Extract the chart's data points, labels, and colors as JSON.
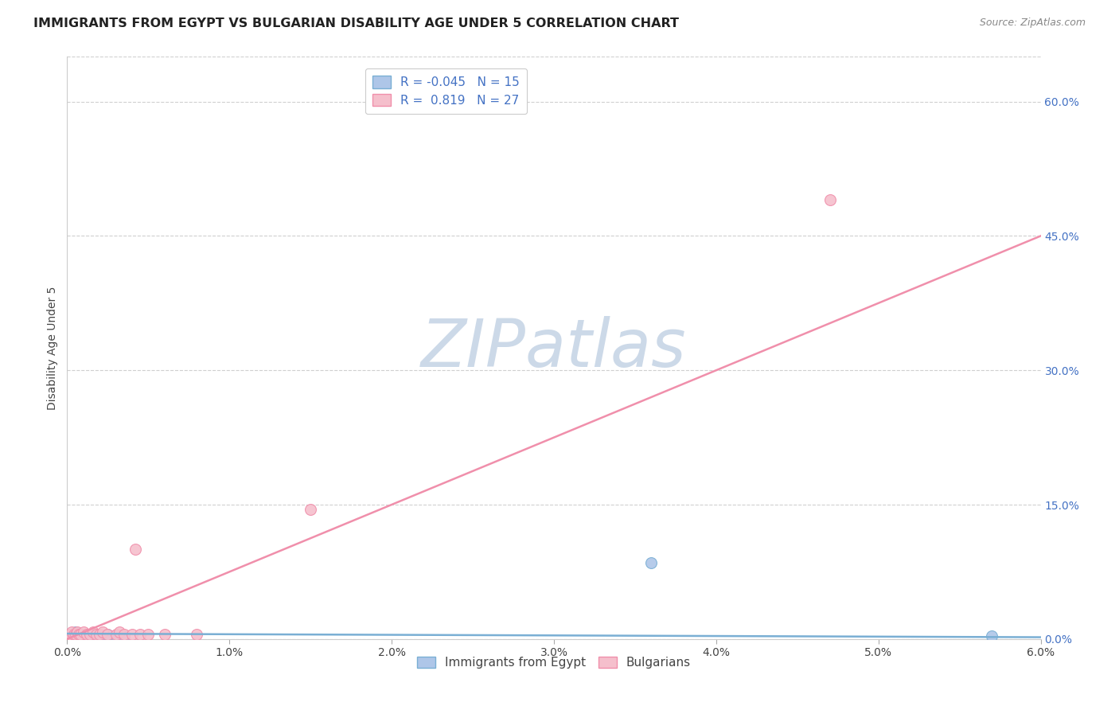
{
  "title": "IMMIGRANTS FROM EGYPT VS BULGARIAN DISABILITY AGE UNDER 5 CORRELATION CHART",
  "source": "Source: ZipAtlas.com",
  "ylabel": "Disability Age Under 5",
  "legend_labels": [
    "Immigrants from Egypt",
    "Bulgarians"
  ],
  "R_egypt": -0.045,
  "N_egypt": 15,
  "R_bulg": 0.819,
  "N_bulg": 27,
  "color_egypt": "#aec6e8",
  "color_egypt_edge": "#7aafd4",
  "color_egypt_line": "#7aafd4",
  "color_bulg": "#f5bfcc",
  "color_bulg_edge": "#f08fab",
  "color_bulg_line": "#f08fab",
  "xlim": [
    0.0,
    0.06
  ],
  "ylim": [
    0.0,
    0.65
  ],
  "right_yticks": [
    0.0,
    0.15,
    0.3,
    0.45,
    0.6
  ],
  "right_ytick_labels": [
    "0.0%",
    "15.0%",
    "30.0%",
    "45.0%",
    "60.0%"
  ],
  "xtick_vals": [
    0.0,
    0.01,
    0.02,
    0.03,
    0.04,
    0.05,
    0.06
  ],
  "xtick_labels": [
    "0.0%",
    "1.0%",
    "2.0%",
    "3.0%",
    "4.0%",
    "5.0%",
    "6.0%"
  ],
  "egypt_x": [
    0.0002,
    0.0003,
    0.0004,
    0.0005,
    0.0006,
    0.0008,
    0.001,
    0.0012,
    0.0015,
    0.002,
    0.0025,
    0.003,
    0.0035,
    0.036,
    0.057
  ],
  "egypt_y": [
    0.005,
    0.003,
    0.005,
    0.008,
    0.003,
    0.005,
    0.003,
    0.005,
    0.003,
    0.003,
    0.005,
    0.003,
    0.003,
    0.085,
    0.003
  ],
  "bulg_x": [
    0.0001,
    0.0002,
    0.0003,
    0.0004,
    0.0005,
    0.0006,
    0.0007,
    0.0008,
    0.001,
    0.0012,
    0.0014,
    0.0016,
    0.0018,
    0.002,
    0.0022,
    0.0025,
    0.003,
    0.0032,
    0.0035,
    0.004,
    0.0042,
    0.0045,
    0.005,
    0.006,
    0.008,
    0.015,
    0.047
  ],
  "bulg_y": [
    0.005,
    0.005,
    0.008,
    0.005,
    0.005,
    0.008,
    0.005,
    0.005,
    0.008,
    0.005,
    0.005,
    0.008,
    0.005,
    0.005,
    0.008,
    0.005,
    0.005,
    0.008,
    0.005,
    0.005,
    0.1,
    0.005,
    0.005,
    0.005,
    0.005,
    0.145,
    0.49
  ],
  "bulg_line_x": [
    0.0,
    0.06
  ],
  "bulg_line_y": [
    0.0,
    0.45
  ],
  "egypt_line_x": [
    0.0,
    0.06
  ],
  "egypt_line_y": [
    0.006,
    0.002
  ],
  "grid_color": "#d0d0d0",
  "background_color": "#ffffff",
  "title_fontsize": 11.5,
  "axis_label_fontsize": 10,
  "tick_fontsize": 10,
  "legend_fontsize": 11,
  "source_fontsize": 9,
  "watermark": "ZIPatlas",
  "watermark_color": "#ccd9e8",
  "watermark_fontsize": 60,
  "tick_color": "#4472c4",
  "dot_size": 100
}
